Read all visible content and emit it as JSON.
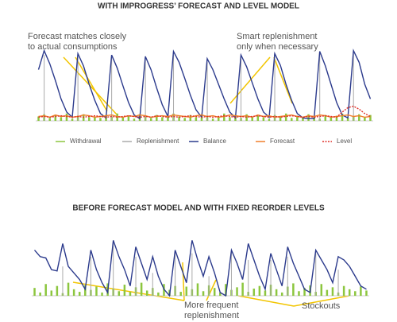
{
  "chart_data": [
    {
      "type": "combo",
      "title": "WITH IMPROGRESS’ FORECAST AND LEVEL MODEL",
      "annotations": [
        [
          "Forecast matches closely",
          "to actual consumptions"
        ],
        [
          "Smart replenishment",
          "only when necessary"
        ]
      ],
      "legend": true,
      "ylim": [
        0,
        100
      ],
      "categories": [
        null,
        null,
        null,
        null,
        null,
        null,
        null,
        null,
        null,
        null,
        null,
        null,
        null,
        null,
        null,
        null,
        null,
        null,
        null,
        null,
        null,
        null,
        null,
        null,
        null,
        null,
        null,
        null,
        null,
        null,
        null,
        null,
        null,
        null,
        null,
        null,
        null,
        null,
        null,
        null,
        null,
        null,
        null,
        null,
        null,
        null,
        null,
        null,
        null,
        null,
        null,
        null,
        null,
        null,
        null,
        null,
        null,
        null,
        null,
        null
      ],
      "series": [
        {
          "name": "Withdrawal",
          "color": "#8cc63f",
          "style": "bar",
          "values": [
            6,
            9,
            4,
            8,
            5,
            10,
            3,
            7,
            9,
            5,
            6,
            4,
            8,
            6,
            10,
            5,
            7,
            3,
            9,
            6,
            4,
            8,
            5,
            7,
            10,
            6,
            4,
            8,
            5,
            9,
            7,
            3,
            6,
            10,
            5,
            8,
            4,
            9,
            6,
            7,
            5,
            3,
            8,
            6,
            10,
            4,
            7,
            5,
            9,
            6,
            3,
            8,
            5,
            7,
            10,
            4,
            6,
            9,
            5,
            8
          ]
        },
        {
          "name": "Replenishment",
          "color": "#aaaaaa",
          "style": "bar",
          "values": [
            0,
            90,
            0,
            0,
            0,
            0,
            0,
            88,
            0,
            0,
            0,
            0,
            0,
            86,
            0,
            0,
            0,
            0,
            0,
            85,
            0,
            0,
            0,
            0,
            90,
            0,
            0,
            0,
            0,
            0,
            80,
            0,
            0,
            0,
            0,
            0,
            85,
            0,
            0,
            0,
            0,
            0,
            88,
            0,
            0,
            0,
            0,
            0,
            0,
            0,
            92,
            0,
            0,
            0,
            0,
            0,
            92,
            0,
            0,
            0
          ]
        },
        {
          "name": "Balance",
          "color": "#2b3a8c",
          "style": "line",
          "values": [
            70,
            96,
            78,
            55,
            30,
            12,
            5,
            92,
            75,
            50,
            28,
            10,
            4,
            90,
            72,
            48,
            25,
            8,
            3,
            88,
            70,
            45,
            22,
            6,
            95,
            80,
            58,
            35,
            15,
            5,
            85,
            70,
            50,
            30,
            12,
            4,
            90,
            74,
            52,
            30,
            12,
            5,
            92,
            76,
            50,
            28,
            10,
            4,
            3,
            3,
            95,
            75,
            50,
            25,
            8,
            4,
            96,
            80,
            50,
            30
          ]
        },
        {
          "name": "Forecast",
          "color": "#f07f2a",
          "style": "line",
          "values": [
            6,
            7,
            5,
            8,
            6,
            7,
            5,
            6,
            8,
            7,
            5,
            6,
            7,
            8,
            6,
            5,
            7,
            6,
            8,
            7,
            5,
            6,
            7,
            6,
            8,
            7,
            6,
            5,
            7,
            8,
            6,
            7,
            5,
            6,
            8,
            7,
            6,
            7,
            5,
            8,
            6,
            7,
            5,
            6,
            7,
            8,
            6,
            5,
            7,
            6,
            8,
            7,
            5,
            6,
            7,
            8,
            6,
            7,
            5,
            6
          ]
        },
        {
          "name": "Level",
          "color": "#e0302a",
          "style": "line",
          "dash": true,
          "values": [
            5,
            6,
            5,
            6,
            7,
            6,
            5,
            6,
            5,
            6,
            7,
            6,
            5,
            6,
            5,
            6,
            7,
            6,
            5,
            6,
            5,
            7,
            6,
            5,
            6,
            5,
            6,
            7,
            6,
            5,
            6,
            5,
            6,
            7,
            6,
            5,
            6,
            5,
            6,
            7,
            6,
            5,
            6,
            5,
            6,
            7,
            6,
            5,
            6,
            5,
            6,
            7,
            6,
            5,
            12,
            18,
            20,
            16,
            10,
            6
          ]
        }
      ]
    },
    {
      "type": "combo",
      "title": "BEFORE FORECAST MODEL AND WITH FIXED REORDER LEVELS",
      "annotations": [
        [
          "More frequent",
          "replenishment"
        ],
        [
          "Stockouts"
        ]
      ],
      "legend": false,
      "ylim": [
        0,
        100
      ],
      "categories": [
        null,
        null,
        null,
        null,
        null,
        null,
        null,
        null,
        null,
        null,
        null,
        null,
        null,
        null,
        null,
        null,
        null,
        null,
        null,
        null,
        null,
        null,
        null,
        null,
        null,
        null,
        null,
        null,
        null,
        null,
        null,
        null,
        null,
        null,
        null,
        null,
        null,
        null,
        null,
        null,
        null,
        null,
        null,
        null,
        null,
        null,
        null,
        null,
        null,
        null,
        null,
        null,
        null,
        null,
        null,
        null,
        null,
        null,
        null,
        null
      ],
      "series": [
        {
          "color": "#8cc63f",
          "style": "bar",
          "values": [
            12,
            5,
            18,
            8,
            15,
            4,
            20,
            10,
            6,
            16,
            9,
            14,
            5,
            19,
            11,
            7,
            17,
            6,
            13,
            20,
            8,
            12,
            5,
            18,
            9,
            15,
            6,
            14,
            10,
            19,
            7,
            16,
            12,
            5,
            18,
            9,
            13,
            20,
            6,
            11,
            15,
            8,
            17,
            10,
            5,
            14,
            19,
            7,
            12,
            16,
            6,
            18,
            9,
            13,
            5,
            15,
            10,
            7,
            14,
            8
          ]
        },
        {
          "color": "#aaaaaa",
          "style": "bar",
          "values": [
            0,
            0,
            0,
            0,
            0,
            45,
            0,
            0,
            0,
            0,
            60,
            0,
            0,
            0,
            80,
            0,
            0,
            0,
            60,
            0,
            0,
            35,
            0,
            0,
            0,
            70,
            0,
            0,
            65,
            0,
            0,
            30,
            0,
            0,
            0,
            70,
            0,
            0,
            55,
            0,
            0,
            0,
            55,
            0,
            0,
            60,
            0,
            0,
            0,
            0,
            65,
            0,
            0,
            0,
            40,
            0,
            0,
            0,
            0,
            0
          ]
        },
        {
          "color": "#2b3a8c",
          "style": "line",
          "values": [
            70,
            60,
            58,
            40,
            38,
            80,
            45,
            35,
            25,
            10,
            70,
            40,
            20,
            5,
            85,
            60,
            40,
            15,
            75,
            50,
            25,
            60,
            30,
            10,
            0,
            70,
            45,
            20,
            85,
            55,
            30,
            60,
            35,
            5,
            0,
            70,
            50,
            25,
            80,
            55,
            30,
            10,
            65,
            40,
            15,
            75,
            50,
            30,
            10,
            5,
            70,
            55,
            40,
            20,
            60,
            55,
            45,
            30,
            15,
            10
          ]
        }
      ]
    }
  ]
}
